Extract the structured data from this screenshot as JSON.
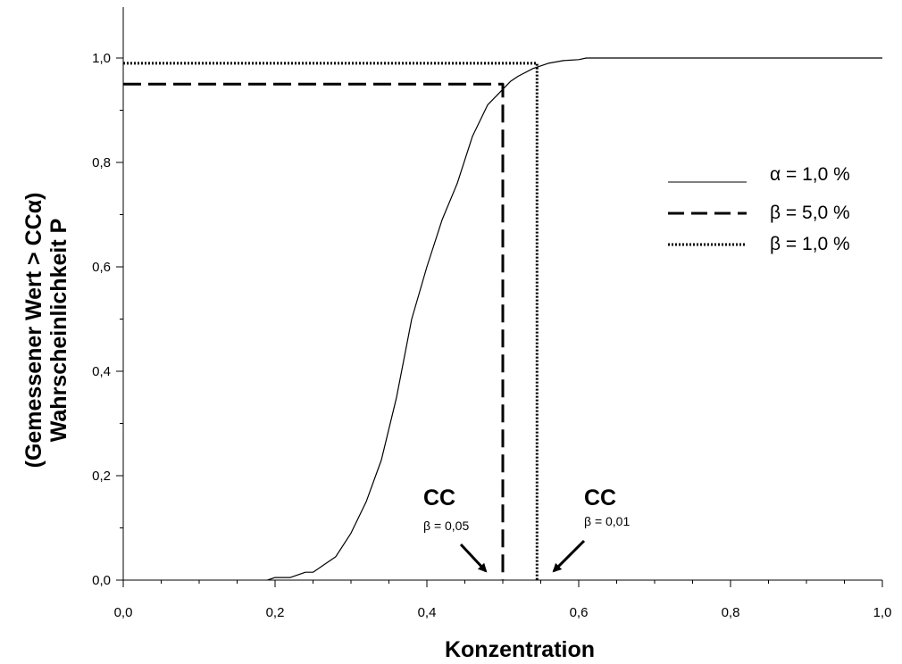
{
  "chart_data": {
    "type": "line",
    "xlabel": "Konzentration",
    "ylabel_line1": "(Gemessener Wert > CCα)",
    "ylabel_line2": "Wahrscheinlichkeit P",
    "xlim": [
      0,
      1
    ],
    "ylim": [
      0,
      1
    ],
    "x_ticks": [
      "0,0",
      "0,2",
      "0,4",
      "0,6",
      "0,8",
      "1,0"
    ],
    "y_ticks": [
      "0,0",
      "0,2",
      "0,4",
      "0,6",
      "0,8",
      "1,0"
    ],
    "grid": false,
    "legend_position": "right",
    "series": [
      {
        "name": "α = 1,0 %",
        "style": "solid",
        "x": [
          0.19,
          0.2,
          0.22,
          0.24,
          0.25,
          0.26,
          0.28,
          0.3,
          0.32,
          0.34,
          0.36,
          0.38,
          0.4,
          0.42,
          0.44,
          0.46,
          0.47,
          0.48,
          0.5,
          0.51,
          0.52,
          0.54,
          0.55,
          0.56,
          0.58,
          0.6,
          0.61,
          0.7,
          0.8,
          0.9,
          1.0
        ],
        "y": [
          0.0,
          0.005,
          0.005,
          0.015,
          0.015,
          0.025,
          0.045,
          0.09,
          0.15,
          0.23,
          0.35,
          0.5,
          0.6,
          0.69,
          0.76,
          0.85,
          0.88,
          0.91,
          0.94,
          0.955,
          0.965,
          0.98,
          0.985,
          0.99,
          0.995,
          0.997,
          1.0,
          1.0,
          1.0,
          1.0,
          1.0
        ]
      },
      {
        "name": "β = 5,0 %",
        "style": "dashed",
        "x": [
          0.0,
          0.5,
          0.5
        ],
        "y": [
          0.95,
          0.95,
          0.0
        ]
      },
      {
        "name": "β = 1,0 %",
        "style": "dotted",
        "x": [
          0.0,
          0.545,
          0.545
        ],
        "y": [
          0.99,
          0.99,
          0.0
        ]
      }
    ],
    "annotations": [
      {
        "text": "CC",
        "subscript": "β = 0,05",
        "arrow_target": [
          0.5,
          0.0
        ]
      },
      {
        "text": "CC",
        "subscript": "β = 0,01",
        "arrow_target": [
          0.545,
          0.0
        ]
      }
    ]
  }
}
